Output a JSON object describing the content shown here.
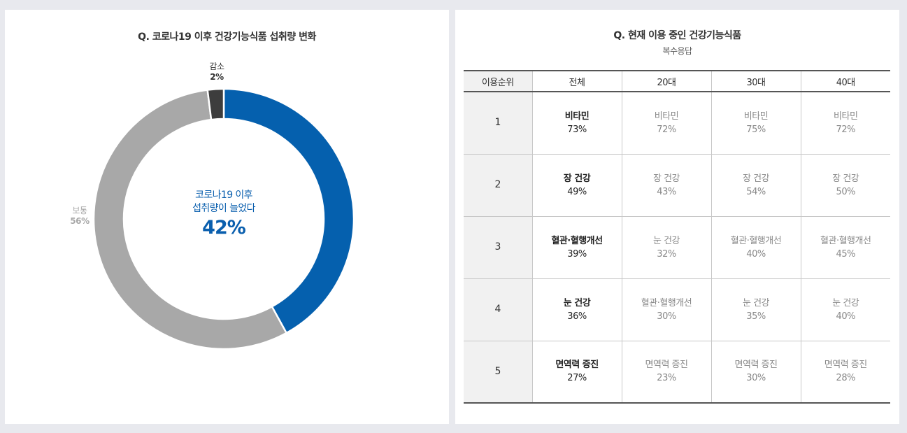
{
  "left_panel": {
    "title": "Q. 코로나19 이후 건강기능식품 섭취량 변화",
    "center": {
      "line1": "코로나19 이후",
      "line2": "섭취량이 늘었다",
      "value": "42%"
    },
    "labels": {
      "decrease": {
        "name": "감소",
        "pct": "2%"
      },
      "normal": {
        "name": "보통",
        "pct": "56%"
      }
    }
  },
  "right_panel": {
    "title": "Q. 현재 이용 중인 건강기능식품",
    "subtitle": "복수응답",
    "table": {
      "headers": [
        "이용순위",
        "전체",
        "20대",
        "30대",
        "40대"
      ],
      "rows": [
        {
          "rank": "1",
          "cells": [
            {
              "name": "비타민",
              "pct": "73%"
            },
            {
              "name": "비타민",
              "pct": "72%"
            },
            {
              "name": "비타민",
              "pct": "75%"
            },
            {
              "name": "비타민",
              "pct": "72%"
            }
          ]
        },
        {
          "rank": "2",
          "cells": [
            {
              "name": "장 건강",
              "pct": "49%"
            },
            {
              "name": "장 건강",
              "pct": "43%"
            },
            {
              "name": "장 건강",
              "pct": "54%"
            },
            {
              "name": "장 건강",
              "pct": "50%"
            }
          ]
        },
        {
          "rank": "3",
          "cells": [
            {
              "name": "혈관·혈행개선",
              "pct": "39%"
            },
            {
              "name": "눈 건강",
              "pct": "32%"
            },
            {
              "name": "혈관·혈행개선",
              "pct": "40%"
            },
            {
              "name": "혈관·혈행개선",
              "pct": "45%"
            }
          ]
        },
        {
          "rank": "4",
          "cells": [
            {
              "name": "눈 건강",
              "pct": "36%"
            },
            {
              "name": "혈관·혈행개선",
              "pct": "30%"
            },
            {
              "name": "눈 건강",
              "pct": "35%"
            },
            {
              "name": "눈 건강",
              "pct": "40%"
            }
          ]
        },
        {
          "rank": "5",
          "cells": [
            {
              "name": "면역력 증진",
              "pct": "27%"
            },
            {
              "name": "면역력 증진",
              "pct": "23%"
            },
            {
              "name": "면역력 증진",
              "pct": "30%"
            },
            {
              "name": "면역력 증진",
              "pct": "28%"
            }
          ]
        }
      ]
    }
  },
  "colors": {
    "increase": "#0560ae",
    "normal": "#a8a8a8",
    "decrease": "#3d3d3d",
    "background": "#e8e9ee"
  },
  "chart_data": [
    {
      "type": "pie",
      "subtype": "donut",
      "title": "Q. 코로나19 이후 건강기능식품 섭취량 변화",
      "categories": [
        "늘었다",
        "보통",
        "감소"
      ],
      "values": [
        42,
        56,
        2
      ],
      "unit": "%",
      "colors": [
        "#0560ae",
        "#a8a8a8",
        "#3d3d3d"
      ],
      "center_annotation": "코로나19 이후 섭취량이 늘었다 42%"
    },
    {
      "type": "table",
      "title": "Q. 현재 이용 중인 건강기능식품",
      "subtitle": "복수응답",
      "columns": [
        "이용순위",
        "전체",
        "20대",
        "30대",
        "40대"
      ],
      "rows": [
        [
          "1",
          "비타민 73%",
          "비타민 72%",
          "비타민 75%",
          "비타민 72%"
        ],
        [
          "2",
          "장 건강 49%",
          "장 건강 43%",
          "장 건강 54%",
          "장 건강 50%"
        ],
        [
          "3",
          "혈관·혈행개선 39%",
          "눈 건강 32%",
          "혈관·혈행개선 40%",
          "혈관·혈행개선 45%"
        ],
        [
          "4",
          "눈 건강 36%",
          "혈관·혈행개선 30%",
          "눈 건강 35%",
          "눈 건강 40%"
        ],
        [
          "5",
          "면역력 증진 27%",
          "면역력 증진 23%",
          "면역력 증진 30%",
          "면역력 증진 28%"
        ]
      ]
    }
  ]
}
